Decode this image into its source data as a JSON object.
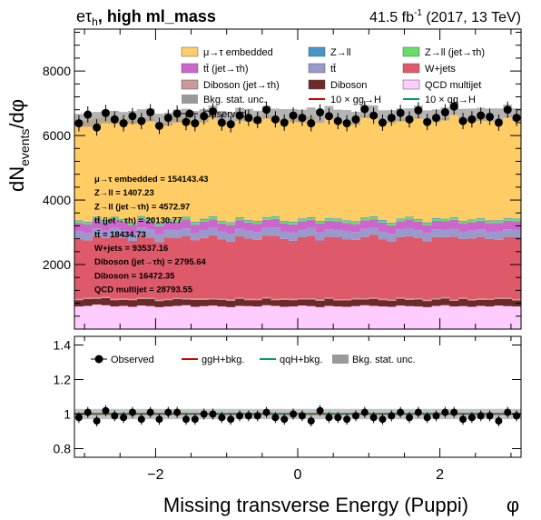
{
  "header": {
    "channel": "eτ",
    "channel_sub": "h",
    "category": ", high ml_mass",
    "lumi_value": "41.5 fb",
    "lumi_exp": "-1",
    "lumi_detail": " (2017, 13 TeV)"
  },
  "xaxis": {
    "label": "Missing transverse Energy (Puppi)",
    "unit_label": "φ"
  },
  "top_yaxis": {
    "label": "dN",
    "label_sub": "events",
    "label_tail": "/dφ"
  },
  "yields": [
    "μ→τ embedded = 154143.43",
    "Z→ll = 1407.23",
    "Z→ll (jet→τh) = 4572.97",
    "tt̄ (jet→τh) = 20130.77",
    "tt̄ = 18434.73",
    "W+jets = 93537.16",
    "Diboson (jet→τh) = 2795.64",
    "Diboson = 16472.35",
    "QCD multijet = 28793.55"
  ],
  "legend": [
    {
      "label": "μ→τ embedded",
      "color": "#ffcc66",
      "kind": "box"
    },
    {
      "label": "Z→ll",
      "color": "#4496c8",
      "kind": "box"
    },
    {
      "label": "Z→ll (jet→τh)",
      "color": "#64de6a",
      "kind": "box"
    },
    {
      "label": "tt̄ (jet→τh)",
      "color": "#cc66cc",
      "kind": "box"
    },
    {
      "label": "tt̄",
      "color": "#9999cc",
      "kind": "box"
    },
    {
      "label": "W+jets",
      "color": "#de5a6a",
      "kind": "box"
    },
    {
      "label": "Diboson (jet→τh)",
      "color": "#c89a9a",
      "kind": "box"
    },
    {
      "label": "Diboson",
      "color": "#6e2a2a",
      "kind": "box"
    },
    {
      "label": "QCD multijet",
      "color": "#ffccff",
      "kind": "box"
    },
    {
      "label": "Bkg. stat. unc.",
      "color": "#999999",
      "kind": "box"
    },
    {
      "label": "10 × gg→H",
      "color": "#cc0000",
      "kind": "line"
    },
    {
      "label": "10 × qq→H",
      "color": "#009977",
      "kind": "line"
    },
    {
      "label": "Observed",
      "color": "#000000",
      "kind": "marker"
    }
  ],
  "ratio_legend": [
    {
      "label": "Observed",
      "color": "#000000",
      "kind": "marker"
    },
    {
      "label": "ggH+bkg.",
      "color": "#cc0000",
      "kind": "line"
    },
    {
      "label": "qqH+bkg.",
      "color": "#009977",
      "kind": "line"
    },
    {
      "label": "Bkg. stat. unc.",
      "color": "#999999",
      "kind": "box"
    }
  ],
  "chart_data": [
    {
      "type": "area",
      "stacked": true,
      "xlim": [
        -3.1416,
        3.1416
      ],
      "ylim": [
        0,
        9300
      ],
      "yticks": [
        2000,
        4000,
        6000,
        8000
      ],
      "xticks": [
        -2,
        0,
        2
      ],
      "bins": 50,
      "series": [
        {
          "name": "QCD multijet",
          "color": "#ffccff",
          "values": [
            700,
            720,
            760,
            740,
            700,
            720,
            690,
            730,
            710,
            680,
            700,
            720,
            740,
            690,
            710,
            730,
            700,
            680,
            720,
            710,
            700,
            740,
            720,
            690,
            700,
            730,
            710,
            680,
            720,
            700,
            690,
            710,
            740,
            720,
            700,
            690,
            730,
            710,
            700,
            680,
            720,
            740,
            700,
            710,
            690,
            720,
            700,
            730,
            710,
            700
          ]
        },
        {
          "name": "Diboson",
          "color": "#6e2a2a",
          "values": [
            200,
            210,
            180,
            220,
            200,
            190,
            210,
            200,
            220,
            190,
            200,
            210,
            180,
            220,
            200,
            190,
            210,
            200,
            220,
            190,
            200,
            210,
            180,
            220,
            200,
            190,
            210,
            200,
            220,
            190,
            200,
            210,
            180,
            220,
            200,
            190,
            210,
            200,
            220,
            190,
            200,
            210,
            180,
            220,
            200,
            190,
            210,
            200,
            220,
            190
          ]
        },
        {
          "name": "Diboson (jet→τh)",
          "color": "#c89a9a",
          "values": [
            35,
            40,
            35,
            38,
            36,
            37,
            35,
            39,
            36,
            38,
            35,
            40,
            35,
            38,
            36,
            37,
            35,
            39,
            36,
            38,
            35,
            40,
            35,
            38,
            36,
            37,
            35,
            39,
            36,
            38,
            35,
            40,
            35,
            38,
            36,
            37,
            35,
            39,
            36,
            38,
            35,
            40,
            35,
            38,
            36,
            37,
            35,
            39,
            36,
            38
          ]
        },
        {
          "name": "W+jets",
          "color": "#de5a6a",
          "values": [
            1850,
            1780,
            1900,
            1820,
            1950,
            1880,
            1800,
            1930,
            1870,
            1790,
            1900,
            1860,
            1920,
            1810,
            1880,
            1950,
            1840,
            1790,
            1900,
            1870,
            1830,
            1910,
            1960,
            1850,
            1800,
            1890,
            1940,
            1830,
            1880,
            1920,
            1860,
            1810,
            1900,
            1950,
            1850,
            1800,
            1880,
            1930,
            1870,
            1820,
            1900,
            1860,
            1950,
            1830,
            1880,
            1910,
            1850,
            1800,
            1890,
            1920
          ]
        },
        {
          "name": "tt̄",
          "color": "#9999cc",
          "values": [
            240,
            235,
            250,
            230,
            245,
            240,
            235,
            250,
            242,
            238,
            240,
            235,
            250,
            230,
            245,
            240,
            235,
            250,
            242,
            238,
            240,
            235,
            250,
            230,
            245,
            240,
            235,
            250,
            242,
            238,
            240,
            235,
            250,
            230,
            245,
            240,
            235,
            250,
            242,
            238,
            240,
            235,
            250,
            230,
            245,
            240,
            235,
            250,
            242,
            238
          ]
        },
        {
          "name": "tt̄ (jet→τh)",
          "color": "#cc66cc",
          "values": [
            260,
            255,
            270,
            250,
            265,
            260,
            255,
            270,
            262,
            258,
            260,
            255,
            270,
            250,
            265,
            260,
            255,
            270,
            262,
            258,
            260,
            255,
            270,
            250,
            265,
            260,
            255,
            270,
            262,
            258,
            260,
            255,
            270,
            250,
            265,
            260,
            255,
            270,
            262,
            258,
            260,
            255,
            270,
            250,
            265,
            260,
            255,
            270,
            262,
            258
          ]
        },
        {
          "name": "Z→ll (jet→τh)",
          "color": "#64de6a",
          "values": [
            60,
            58,
            62,
            59,
            61,
            60,
            58,
            62,
            60,
            59,
            60,
            58,
            62,
            59,
            61,
            60,
            58,
            62,
            60,
            59,
            60,
            58,
            62,
            59,
            61,
            60,
            58,
            62,
            60,
            59,
            60,
            58,
            62,
            59,
            61,
            60,
            58,
            62,
            60,
            59,
            60,
            58,
            62,
            59,
            61,
            60,
            58,
            62,
            60,
            59
          ]
        },
        {
          "name": "Z→ll",
          "color": "#4496c8",
          "values": [
            25,
            24,
            26,
            25,
            24,
            25,
            26,
            24,
            25,
            25,
            25,
            24,
            26,
            25,
            24,
            25,
            26,
            24,
            25,
            25,
            25,
            24,
            26,
            25,
            24,
            25,
            26,
            24,
            25,
            25,
            25,
            24,
            26,
            25,
            24,
            25,
            26,
            24,
            25,
            25,
            25,
            24,
            26,
            25,
            24,
            25,
            26,
            24,
            25,
            25
          ]
        },
        {
          "name": "μ→τ embedded",
          "color": "#ffcc66",
          "values": [
            3100,
            3150,
            3050,
            3200,
            3080,
            3120,
            3180,
            3060,
            3140,
            3100,
            3090,
            3170,
            3110,
            3050,
            3130,
            3190,
            3080,
            3120,
            3060,
            3150,
            3100,
            3180,
            3040,
            3120,
            3160,
            3090,
            3130,
            3070,
            3150,
            3110,
            3100,
            3060,
            3170,
            3120,
            3080,
            3140,
            3100,
            3050,
            3160,
            3120,
            3090,
            3130,
            3180,
            3070,
            3110,
            3150,
            3080,
            3120,
            3160,
            3100
          ]
        }
      ],
      "total": [
        6470,
        6472,
        6533,
        6584,
        6566,
        6532,
        6564,
        6615,
        6640,
        6477,
        6510,
        6608,
        6631,
        6562,
        6617,
        6733,
        6562,
        6525,
        6660,
        6630,
        6570,
        6720,
        6633,
        6618,
        6622,
        6603,
        6673,
        6600,
        6718,
        6603,
        6590,
        6535,
        6746,
        6738,
        6583,
        6588,
        6642,
        6645,
        6729,
        6581,
        6609,
        6672,
        6836,
        6629,
        6636,
        6659,
        6639,
        6641,
        6758,
        6647
      ],
      "observed": [
        6380,
        6650,
        6250,
        6700,
        6500,
        6380,
        6600,
        6450,
        6720,
        6300,
        6550,
        6680,
        6420,
        6380,
        6600,
        6750,
        6400,
        6350,
        6620,
        6550,
        6480,
        6800,
        6500,
        6400,
        6620,
        6550,
        6380,
        6720,
        6600,
        6450,
        6380,
        6500,
        6820,
        6620,
        6400,
        6550,
        6700,
        6500,
        6780,
        6420,
        6550,
        6720,
        6900,
        6450,
        6500,
        6620,
        6580,
        6400,
        6800,
        6550
      ]
    },
    {
      "type": "scatter",
      "name": "ratio",
      "xlim": [
        -3.1416,
        3.1416
      ],
      "ylim": [
        0.75,
        1.45
      ],
      "yticks": [
        0.8,
        1,
        1.2,
        1.4
      ],
      "xticks": [
        -2,
        0,
        2
      ],
      "ratio": [
        0.98,
        1.01,
        0.96,
        1.02,
        0.99,
        0.98,
        1.01,
        0.97,
        1.01,
        0.97,
        1.01,
        1.01,
        0.97,
        0.97,
        1.0,
        1.0,
        0.98,
        0.97,
        0.99,
        0.99,
        0.99,
        1.01,
        0.98,
        0.97,
        1.0,
        0.99,
        0.96,
        1.02,
        0.98,
        0.98,
        0.97,
        0.99,
        1.01,
        0.98,
        0.97,
        0.99,
        1.01,
        0.98,
        1.01,
        0.98,
        0.99,
        1.01,
        1.01,
        0.97,
        0.98,
        0.99,
        0.99,
        0.96,
        1.01,
        0.99
      ],
      "unc": 0.03
    }
  ]
}
